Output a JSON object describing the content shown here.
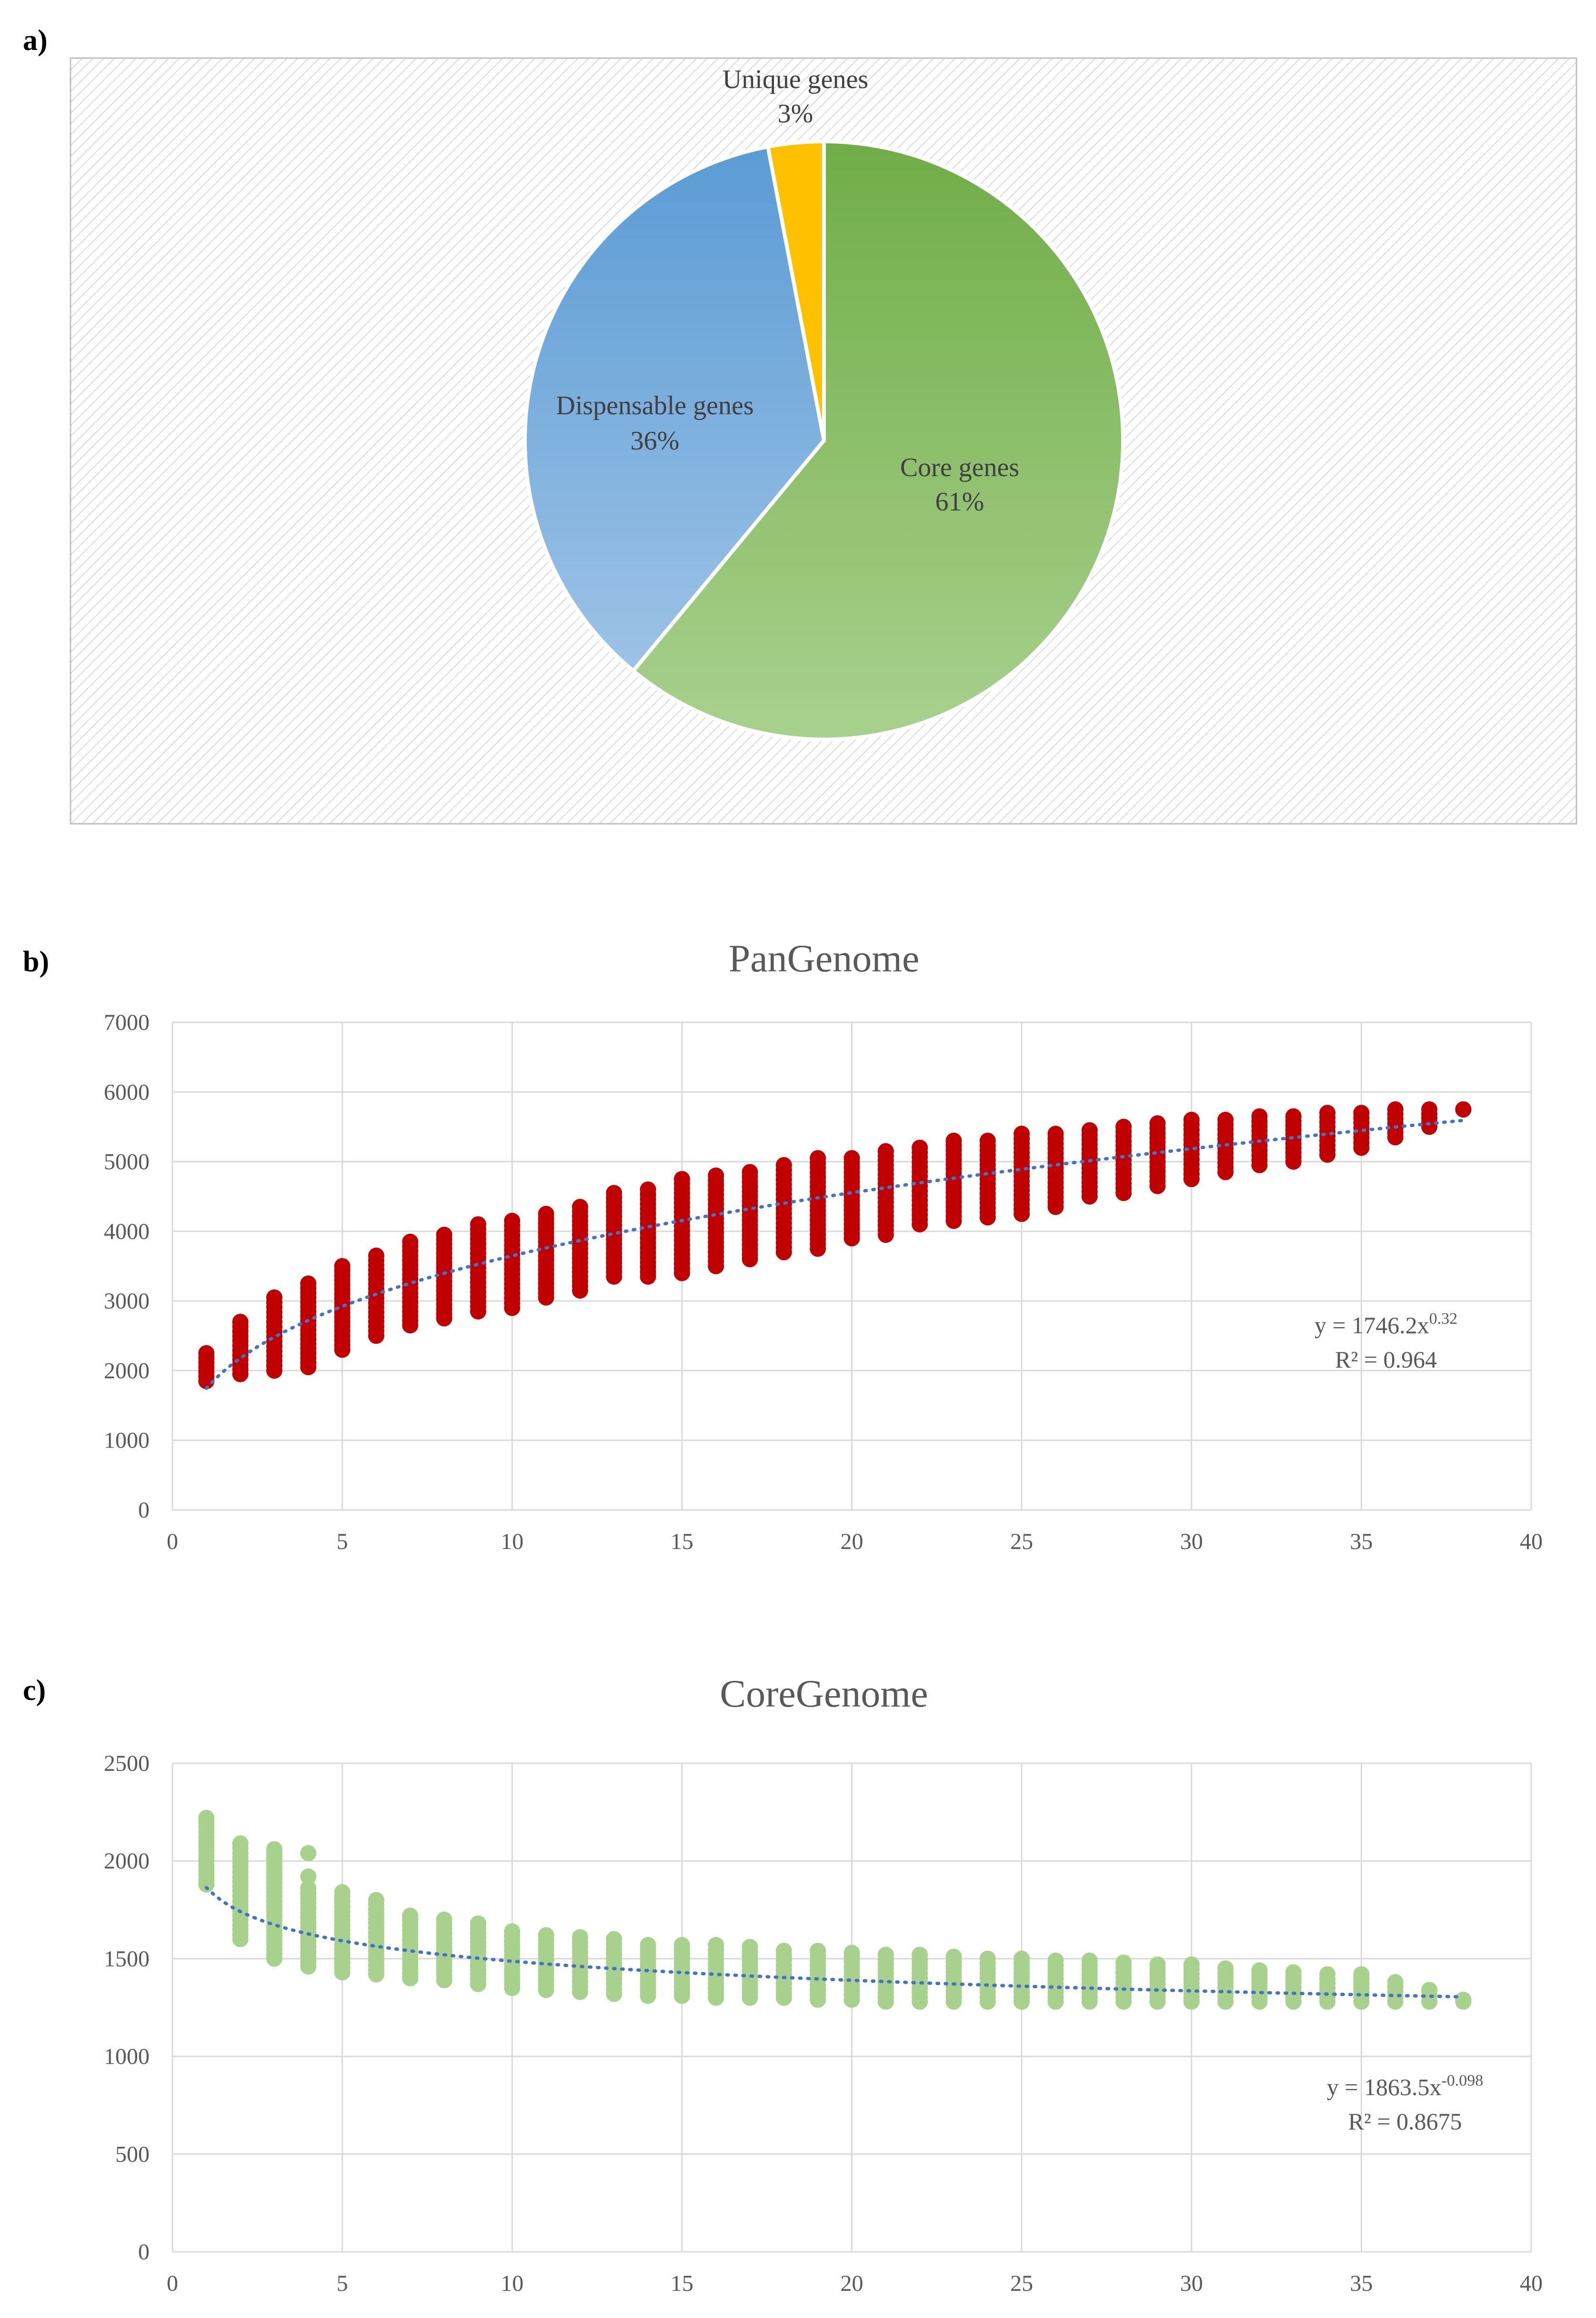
{
  "panels": {
    "a": "a)",
    "b": "b)",
    "c": "c)"
  },
  "colors": {
    "core": "#70ad47",
    "core_light": "#a9d18e",
    "dispensable": "#5b9bd5",
    "dispensable_light": "#9dc3e6",
    "unique": "#ffc000",
    "pan_points": "#c00000",
    "core_points": "#a9d18e",
    "trend": "#4472c4",
    "grid": "#d9d9d9",
    "axis_text": "#595959"
  },
  "chart_data": [
    {
      "id": "a",
      "type": "pie",
      "slices": [
        {
          "label": "Core genes",
          "percent_label": "61%",
          "value": 61
        },
        {
          "label": "Dispensable genes",
          "percent_label": "36%",
          "value": 36
        },
        {
          "label": "Unique genes",
          "percent_label": "3%",
          "value": 3
        }
      ]
    },
    {
      "id": "b",
      "type": "scatter",
      "title": "PanGenome",
      "xlim": [
        0,
        40
      ],
      "ylim": [
        0,
        7000
      ],
      "xticks": [
        "0",
        "5",
        "10",
        "15",
        "20",
        "25",
        "30",
        "35",
        "40"
      ],
      "yticks": [
        "0",
        "1000",
        "2000",
        "3000",
        "4000",
        "5000",
        "6000",
        "7000"
      ],
      "grid": true,
      "ranges": [
        [
          1,
          1850,
          2250
        ],
        [
          2,
          1950,
          2700
        ],
        [
          3,
          2000,
          3050
        ],
        [
          4,
          2050,
          3250
        ],
        [
          5,
          2300,
          3500
        ],
        [
          6,
          2500,
          3650
        ],
        [
          7,
          2650,
          3850
        ],
        [
          8,
          2750,
          3950
        ],
        [
          9,
          2850,
          4100
        ],
        [
          10,
          2900,
          4150
        ],
        [
          11,
          3050,
          4250
        ],
        [
          12,
          3150,
          4350
        ],
        [
          13,
          3350,
          4550
        ],
        [
          14,
          3350,
          4600
        ],
        [
          15,
          3400,
          4750
        ],
        [
          16,
          3500,
          4800
        ],
        [
          17,
          3600,
          4850
        ],
        [
          18,
          3700,
          4950
        ],
        [
          19,
          3750,
          5050
        ],
        [
          20,
          3900,
          5050
        ],
        [
          21,
          3950,
          5150
        ],
        [
          22,
          4100,
          5200
        ],
        [
          23,
          4150,
          5300
        ],
        [
          24,
          4200,
          5300
        ],
        [
          25,
          4250,
          5400
        ],
        [
          26,
          4350,
          5400
        ],
        [
          27,
          4500,
          5450
        ],
        [
          28,
          4550,
          5500
        ],
        [
          29,
          4650,
          5550
        ],
        [
          30,
          4750,
          5600
        ],
        [
          31,
          4850,
          5600
        ],
        [
          32,
          4950,
          5650
        ],
        [
          33,
          5000,
          5650
        ],
        [
          34,
          5100,
          5700
        ],
        [
          35,
          5200,
          5700
        ],
        [
          36,
          5350,
          5750
        ],
        [
          37,
          5500,
          5750
        ],
        [
          38,
          5750,
          5750
        ]
      ],
      "fit": {
        "a": 1746.2,
        "b": 0.32
      },
      "equation": {
        "prefix": "y = 1746.2x",
        "exponent": "0.32",
        "r2": "R² = 0.964"
      }
    },
    {
      "id": "c",
      "type": "scatter",
      "title": "CoreGenome",
      "xlim": [
        0,
        40
      ],
      "ylim": [
        0,
        2500
      ],
      "xticks": [
        "0",
        "5",
        "10",
        "15",
        "20",
        "25",
        "30",
        "35",
        "40"
      ],
      "yticks": [
        "0",
        "500",
        "1000",
        "1500",
        "2000",
        "2500"
      ],
      "grid": true,
      "ranges": [
        [
          1,
          1880,
          2220
        ],
        [
          2,
          1600,
          2090
        ],
        [
          3,
          1500,
          2060
        ],
        [
          4,
          1460,
          1860
        ],
        [
          5,
          1430,
          1840
        ],
        [
          6,
          1420,
          1800
        ],
        [
          7,
          1400,
          1720
        ],
        [
          8,
          1390,
          1700
        ],
        [
          9,
          1370,
          1680
        ],
        [
          10,
          1350,
          1640
        ],
        [
          11,
          1340,
          1620
        ],
        [
          12,
          1330,
          1610
        ],
        [
          13,
          1320,
          1600
        ],
        [
          14,
          1310,
          1570
        ],
        [
          15,
          1310,
          1570
        ],
        [
          16,
          1300,
          1570
        ],
        [
          17,
          1300,
          1560
        ],
        [
          18,
          1300,
          1540
        ],
        [
          19,
          1290,
          1540
        ],
        [
          20,
          1290,
          1530
        ],
        [
          21,
          1280,
          1520
        ],
        [
          22,
          1280,
          1520
        ],
        [
          23,
          1280,
          1510
        ],
        [
          24,
          1280,
          1500
        ],
        [
          25,
          1280,
          1500
        ],
        [
          26,
          1280,
          1490
        ],
        [
          27,
          1280,
          1490
        ],
        [
          28,
          1280,
          1480
        ],
        [
          29,
          1280,
          1470
        ],
        [
          30,
          1280,
          1470
        ],
        [
          31,
          1280,
          1450
        ],
        [
          32,
          1280,
          1440
        ],
        [
          33,
          1280,
          1430
        ],
        [
          34,
          1280,
          1420
        ],
        [
          35,
          1280,
          1420
        ],
        [
          36,
          1280,
          1380
        ],
        [
          37,
          1280,
          1340
        ],
        [
          38,
          1280,
          1290
        ]
      ],
      "outliers": [
        [
          4,
          2040
        ],
        [
          4,
          1920
        ]
      ],
      "fit": {
        "a": 1863.5,
        "b": -0.098
      },
      "equation": {
        "prefix": "y = 1863.5x",
        "exponent": "-0.098",
        "r2": "R² = 0.8675"
      }
    }
  ]
}
